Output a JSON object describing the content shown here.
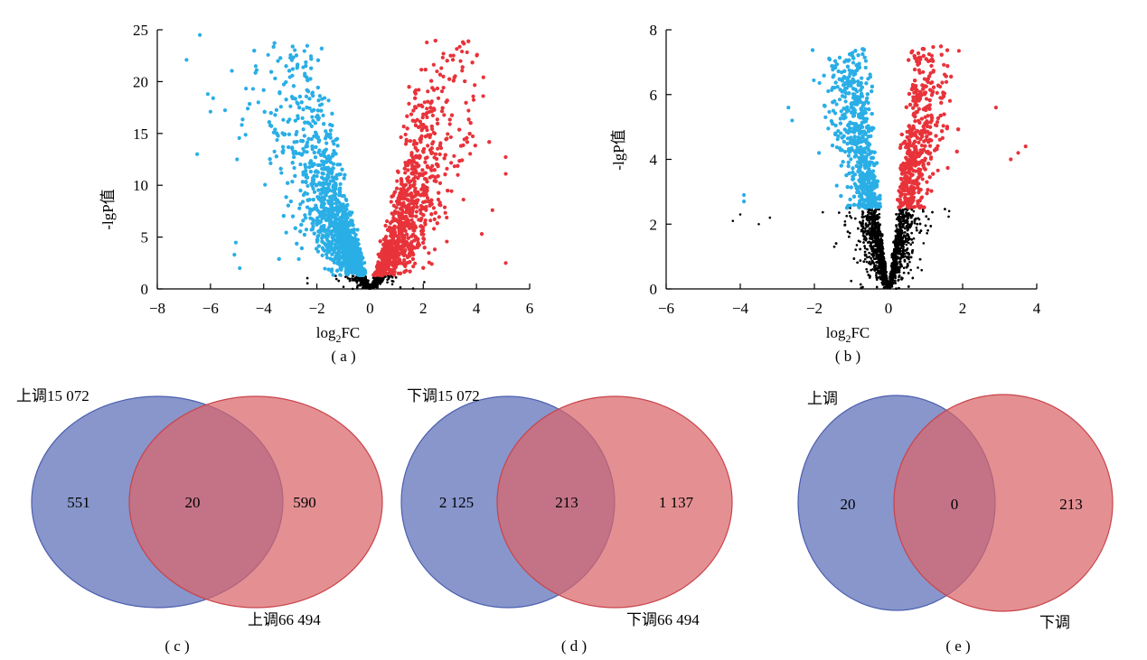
{
  "colors": {
    "up": "#e8333a",
    "down": "#2aaee6",
    "ns": "#000000",
    "circle_a": "#6e7fc1",
    "circle_b": "#d9656a"
  },
  "chart_data": [
    {
      "id": "a",
      "type": "scatter",
      "caption": "( a )",
      "xlabel": "log2FC",
      "ylabel": "-lgP值",
      "xlim": [
        -8,
        6
      ],
      "ylim": [
        0,
        25
      ],
      "xticks": [
        "−8",
        "−6",
        "−4",
        "−2",
        "0",
        "2",
        "4",
        "6"
      ],
      "yticks": [
        "0",
        "5",
        "10",
        "15",
        "20",
        "25"
      ],
      "threshold": 1.3,
      "series": [
        {
          "values": [
            [
              -6.9,
              22.1
            ],
            [
              -6.4,
              24.5
            ],
            [
              -6.1,
              18.8
            ],
            [
              -5.9,
              18.4
            ],
            [
              -6.0,
              17.1
            ],
            [
              -6.5,
              13.0
            ],
            [
              -4.3,
              21.5
            ],
            [
              -4.4,
              19.3
            ],
            [
              -4.2,
              18.0
            ],
            [
              -3.0,
              22.3
            ],
            [
              -5.0,
              12.5
            ],
            [
              -5.1,
              3.3
            ],
            [
              -4.9,
              2.0
            ],
            [
              -4.6,
              17.4
            ]
          ]
        },
        {
          "values": [
            [
              2.4,
              17.4
            ],
            [
              5.1,
              11.1
            ],
            [
              5.1,
              2.5
            ],
            [
              4.6,
              7.6
            ],
            [
              4.2,
              5.3
            ],
            [
              3.0,
              15.9
            ],
            [
              3.3,
              11.0
            ],
            [
              2.0,
              15.8
            ]
          ]
        }
      ]
    },
    {
      "id": "b",
      "type": "scatter",
      "caption": "( b )",
      "xlabel": "log2FC",
      "ylabel": "-lgP值",
      "xlim": [
        -6,
        4
      ],
      "ylim": [
        0,
        8
      ],
      "xticks": [
        "−6",
        "−4",
        "−2",
        "0",
        "2",
        "4"
      ],
      "yticks": [
        "0",
        "2",
        "4",
        "6",
        "8"
      ],
      "threshold": 2.5,
      "series": [
        {
          "values": [
            [
              -3.9,
              2.9
            ],
            [
              -3.9,
              2.7
            ],
            [
              -2.7,
              5.6
            ],
            [
              -1.4,
              5.7
            ],
            [
              -1.7,
              5.3
            ],
            [
              -2.6,
              5.2
            ]
          ]
        },
        {
          "values": [
            [
              1.9,
              7.35
            ],
            [
              1.4,
              5.9
            ],
            [
              2.9,
              5.6
            ],
            [
              3.7,
              4.4
            ],
            [
              3.5,
              4.2
            ],
            [
              3.3,
              4.0
            ]
          ]
        },
        {
          "values": [
            [
              -4.2,
              2.1
            ],
            [
              -4.0,
              2.3
            ],
            [
              -3.5,
              2.0
            ],
            [
              -3.2,
              2.2
            ]
          ]
        }
      ]
    },
    {
      "id": "c",
      "type": "venn",
      "caption": "( c )",
      "set_a_label": "上调15 072",
      "set_b_label": "上调66 494",
      "values": {
        "a_only": "551",
        "both": "20",
        "b_only": "590"
      }
    },
    {
      "id": "d",
      "type": "venn",
      "caption": "( d )",
      "set_a_label": "下调15 072",
      "set_b_label": "下调66 494",
      "values": {
        "a_only": "2 125",
        "both": "213",
        "b_only": "1 137"
      }
    },
    {
      "id": "e",
      "type": "venn",
      "caption": "( e )",
      "set_a_label": "上调",
      "set_b_label": "下调",
      "values": {
        "a_only": "20",
        "both": "0",
        "b_only": "213"
      }
    }
  ]
}
